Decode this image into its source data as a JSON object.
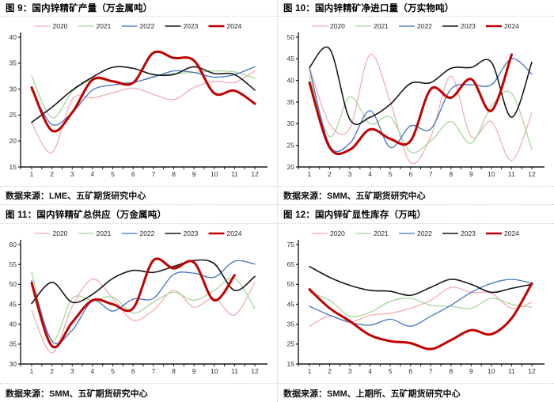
{
  "page": {
    "background": "#ffffff",
    "divider_color": "#cfcfcf",
    "axis_color": "#1a1a1a",
    "label_color": "#333333"
  },
  "chart_data": [
    {
      "type": "line",
      "title": "图 9：国内锌精矿产量（万金属吨）",
      "source": "数据来源：LME、五矿期货研究中心",
      "x": [
        1,
        2,
        3,
        4,
        5,
        6,
        7,
        8,
        9,
        10,
        11,
        12
      ],
      "ylim": [
        15,
        40
      ],
      "yticks": [
        15,
        20,
        25,
        30,
        35,
        40
      ],
      "grid": false,
      "legend_position": "top",
      "series": [
        {
          "name": "2020",
          "color": "#f2adb4",
          "width": 1.3,
          "values": [
            23.5,
            17.8,
            28.0,
            28.3,
            29.3,
            30.2,
            29.0,
            28.0,
            30.3,
            31.5,
            31.3,
            33.5
          ]
        },
        {
          "name": "2021",
          "color": "#a6d69b",
          "width": 1.3,
          "values": [
            32.5,
            24.5,
            29.5,
            31.8,
            31.5,
            31.2,
            32.5,
            33.0,
            33.2,
            33.5,
            33.3,
            32.1
          ]
        },
        {
          "name": "2022",
          "color": "#4472c4",
          "width": 1.3,
          "values": [
            29.8,
            23.2,
            25.5,
            29.8,
            30.8,
            31.3,
            32.3,
            33.5,
            33.2,
            32.3,
            32.8,
            34.3
          ]
        },
        {
          "name": "2023",
          "color": "#171717",
          "width": 1.6,
          "values": [
            23.6,
            26.5,
            29.8,
            32.3,
            34.2,
            34.0,
            32.8,
            32.8,
            34.3,
            33.0,
            32.8,
            29.8
          ]
        },
        {
          "name": "2024",
          "color": "#c00000",
          "width": 3.0,
          "values": [
            30.3,
            22.0,
            25.5,
            31.8,
            31.5,
            31.2,
            37.0,
            36.0,
            35.5,
            29.2,
            29.7,
            27.2
          ]
        }
      ]
    },
    {
      "type": "line",
      "title": "图 10：国内锌精矿净进口量（万实物吨）",
      "source": "数据来源：SMM、五矿期货研究中心",
      "x": [
        1,
        2,
        3,
        4,
        5,
        6,
        7,
        8,
        9,
        10,
        11,
        12
      ],
      "ylim": [
        20,
        50
      ],
      "yticks": [
        20,
        25,
        30,
        35,
        40,
        45,
        50
      ],
      "grid": false,
      "legend_position": "top",
      "series": [
        {
          "name": "2020",
          "color": "#f2adb4",
          "width": 1.3,
          "values": [
            43.0,
            30.0,
            29.0,
            46.0,
            35.0,
            21.0,
            27.0,
            41.0,
            27.0,
            30.5,
            21.5,
            32.5
          ]
        },
        {
          "name": "2021",
          "color": "#a6d69b",
          "width": 1.3,
          "values": [
            41.0,
            27.0,
            36.2,
            30.0,
            31.5,
            23.5,
            26.0,
            30.5,
            25.5,
            34.0,
            37.0,
            24.0
          ]
        },
        {
          "name": "2022",
          "color": "#4472c4",
          "width": 1.3,
          "values": [
            42.8,
            25.0,
            25.5,
            33.0,
            24.5,
            29.5,
            28.8,
            38.0,
            39.0,
            39.0,
            45.0,
            41.5
          ]
        },
        {
          "name": "2023",
          "color": "#171717",
          "width": 1.6,
          "values": [
            43.0,
            47.3,
            31.0,
            31.5,
            34.5,
            39.3,
            39.5,
            42.8,
            43.0,
            44.2,
            31.5,
            44.2
          ]
        },
        {
          "name": "2024",
          "color": "#c00000",
          "width": 3.0,
          "values": [
            39.5,
            24.5,
            24.0,
            28.7,
            26.5,
            26.0,
            38.0,
            36.0,
            40.3,
            33.0,
            46.0
          ]
        }
      ]
    },
    {
      "type": "line",
      "title": "图 11：国内锌精矿总供应（万金属吨）",
      "source": "数据来源：SMM、五矿期货研究中心",
      "x": [
        1,
        2,
        3,
        4,
        5,
        6,
        7,
        8,
        9,
        10,
        11,
        12
      ],
      "ylim": [
        30,
        60
      ],
      "yticks": [
        30,
        35,
        40,
        45,
        50,
        55,
        60
      ],
      "grid": false,
      "legend_position": "top",
      "series": [
        {
          "name": "2020",
          "color": "#f2adb4",
          "width": 1.3,
          "values": [
            43.5,
            32.8,
            44.5,
            51.3,
            46.5,
            41.0,
            43.5,
            48.5,
            44.3,
            46.5,
            42.3,
            50.5
          ]
        },
        {
          "name": "2021",
          "color": "#a6d69b",
          "width": 1.3,
          "values": [
            53.0,
            36.0,
            46.5,
            46.0,
            46.8,
            42.8,
            45.5,
            48.0,
            46.0,
            48.5,
            51.5,
            44.0
          ]
        },
        {
          "name": "2022",
          "color": "#4472c4",
          "width": 1.3,
          "values": [
            51.0,
            35.8,
            38.5,
            45.8,
            43.3,
            46.3,
            46.5,
            52.5,
            52.8,
            51.8,
            55.8,
            55.1
          ]
        },
        {
          "name": "2023",
          "color": "#171717",
          "width": 1.6,
          "values": [
            45.2,
            50.5,
            45.5,
            47.5,
            51.5,
            53.5,
            53.0,
            54.5,
            56.0,
            55.2,
            48.5,
            52.0
          ]
        },
        {
          "name": "2024",
          "color": "#c00000",
          "width": 3.0,
          "values": [
            50.3,
            34.5,
            40.5,
            46.0,
            45.0,
            44.0,
            56.0,
            54.0,
            55.5,
            46.0,
            52.3
          ]
        }
      ]
    },
    {
      "type": "line",
      "title": "图 12：国内锌矿显性库存（万吨）",
      "source": "数据来源：SMM、上期所、五矿期货研究中心",
      "x": [
        1,
        2,
        3,
        4,
        5,
        6,
        7,
        8,
        9,
        10,
        11,
        12
      ],
      "ylim": [
        15,
        75
      ],
      "yticks": [
        15,
        25,
        35,
        45,
        55,
        65,
        75
      ],
      "grid": false,
      "legend_position": "top",
      "series": [
        {
          "name": "2020",
          "color": "#f2adb4",
          "width": 1.3,
          "values": [
            34.0,
            39.0,
            36.0,
            39.5,
            40.5,
            43.0,
            47.0,
            53.5,
            51.0,
            50.5,
            43.0,
            46.0
          ]
        },
        {
          "name": "2021",
          "color": "#a6d69b",
          "width": 1.3,
          "values": [
            51.0,
            47.0,
            39.0,
            41.0,
            46.5,
            48.0,
            44.5,
            44.0,
            43.0,
            48.0,
            45.0,
            43.5
          ]
        },
        {
          "name": "2022",
          "color": "#4472c4",
          "width": 1.3,
          "values": [
            44.0,
            39.5,
            36.0,
            34.5,
            37.5,
            34.0,
            39.0,
            44.5,
            51.0,
            55.5,
            57.5,
            55.5
          ]
        },
        {
          "name": "2023",
          "color": "#171717",
          "width": 1.6,
          "values": [
            64.0,
            58.5,
            54.5,
            52.0,
            51.5,
            49.5,
            53.5,
            57.5,
            55.0,
            51.0,
            53.0,
            55.0
          ]
        },
        {
          "name": "2024",
          "color": "#c00000",
          "width": 3.0,
          "values": [
            52.5,
            43.0,
            36.5,
            29.5,
            26.5,
            25.5,
            22.5,
            27.0,
            32.0,
            30.0,
            38.0,
            55.5
          ]
        }
      ]
    }
  ]
}
